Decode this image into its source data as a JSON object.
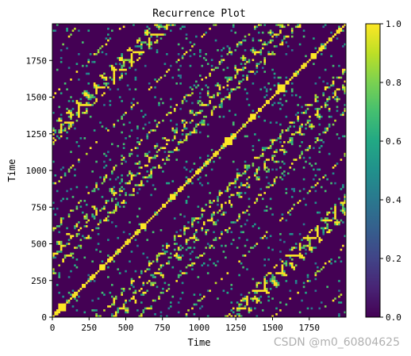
{
  "chart_data": {
    "type": "heatmap",
    "title": "Recurrence Plot",
    "xlabel": "Time",
    "ylabel": "Time",
    "xlim": [
      0,
      2000
    ],
    "ylim": [
      0,
      2000
    ],
    "xticks": [
      0,
      250,
      500,
      750,
      1000,
      1250,
      1500,
      1750
    ],
    "yticks": [
      0,
      250,
      500,
      750,
      1000,
      1250,
      1500,
      1750
    ],
    "colormap": "viridis",
    "colorbar": {
      "range": [
        0.0,
        1.0
      ],
      "ticks": [
        "0.0",
        "0.2",
        "0.4",
        "0.6",
        "0.8",
        "1.0"
      ]
    },
    "grid": false
  },
  "watermark": "CSDN @m0_60804625"
}
